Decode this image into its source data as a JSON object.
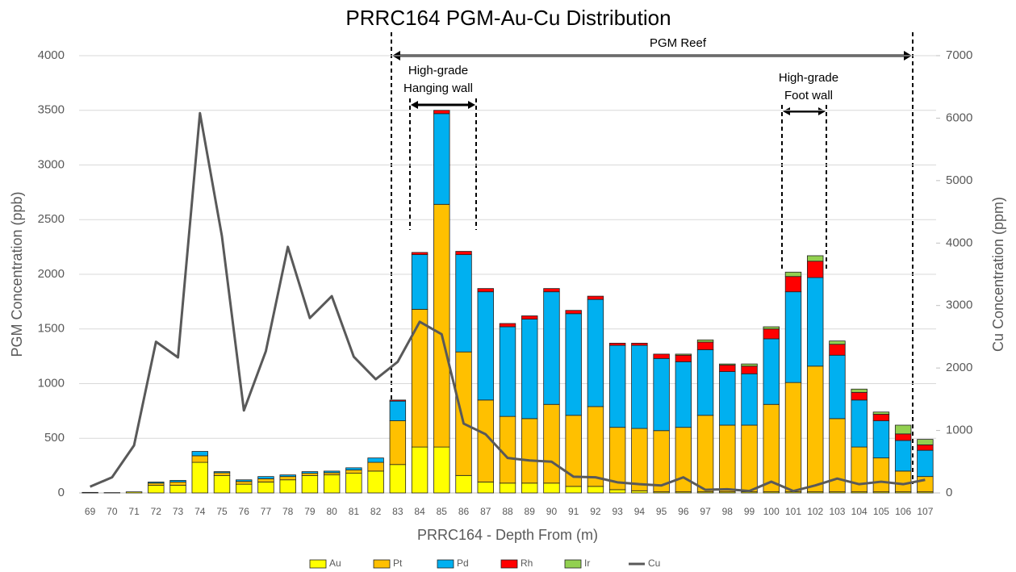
{
  "chart_data": {
    "type": "bar",
    "stacked": true,
    "title": "PRRC164 PGM-Au-Cu Distribution",
    "x_label": "PRRC164 - Depth From (m)",
    "y_label": "PGM Concentration (ppb)",
    "y2_label": "Cu Concentration (ppm)",
    "annotations": [
      "PGM Reef",
      "High-grade",
      "Hanging wall",
      "High-grade",
      "Foot wall"
    ],
    "categories": [
      "69",
      "70",
      "71",
      "72",
      "73",
      "74",
      "75",
      "76",
      "77",
      "78",
      "79",
      "80",
      "81",
      "82",
      "83",
      "84",
      "85",
      "86",
      "87",
      "88",
      "89",
      "90",
      "91",
      "92",
      "93",
      "94",
      "95",
      "96",
      "97",
      "98",
      "99",
      "100",
      "101",
      "102",
      "103",
      "104",
      "105",
      "106",
      "107"
    ],
    "series": [
      {
        "name": "Au",
        "color": "#ffff00",
        "values": [
          5,
          3,
          10,
          70,
          70,
          280,
          160,
          80,
          100,
          120,
          160,
          165,
          180,
          200,
          260,
          420,
          420,
          160,
          100,
          90,
          90,
          90,
          60,
          60,
          30,
          20,
          10,
          10,
          10,
          10,
          10,
          10,
          10,
          10,
          10,
          10,
          10,
          10,
          10
        ]
      },
      {
        "name": "Pt",
        "color": "#ffc000",
        "values": [
          0,
          0,
          0,
          20,
          30,
          60,
          25,
          25,
          30,
          30,
          20,
          20,
          30,
          80,
          400,
          1260,
          2220,
          1130,
          750,
          610,
          590,
          720,
          650,
          730,
          570,
          570,
          560,
          590,
          700,
          610,
          610,
          800,
          1000,
          1150,
          670,
          410,
          310,
          190,
          140
        ]
      },
      {
        "name": "Pd",
        "color": "#00b0f0",
        "values": [
          0,
          0,
          0,
          10,
          15,
          40,
          10,
          15,
          20,
          15,
          15,
          15,
          20,
          40,
          180,
          500,
          830,
          890,
          990,
          820,
          910,
          1030,
          930,
          980,
          750,
          760,
          660,
          600,
          600,
          490,
          470,
          600,
          830,
          810,
          580,
          430,
          340,
          280,
          240
        ]
      },
      {
        "name": "Rh",
        "color": "#ff0000",
        "values": [
          0,
          0,
          0,
          0,
          0,
          0,
          0,
          0,
          0,
          0,
          0,
          0,
          0,
          0,
          10,
          20,
          30,
          30,
          30,
          30,
          30,
          30,
          30,
          30,
          20,
          20,
          40,
          60,
          70,
          60,
          70,
          90,
          140,
          150,
          100,
          70,
          60,
          60,
          50
        ]
      },
      {
        "name": "Ir",
        "color": "#92d050",
        "values": [
          0,
          0,
          0,
          0,
          0,
          0,
          0,
          0,
          0,
          0,
          0,
          0,
          0,
          0,
          0,
          0,
          0,
          0,
          0,
          0,
          0,
          0,
          0,
          0,
          0,
          0,
          0,
          10,
          20,
          10,
          20,
          20,
          40,
          50,
          30,
          30,
          20,
          80,
          50
        ]
      },
      {
        "name": "Cu",
        "color": "#595959",
        "type": "line",
        "axis": "y2",
        "values": [
          100,
          250,
          760,
          2420,
          2170,
          6080,
          4110,
          1320,
          2270,
          3940,
          2800,
          3150,
          2180,
          1820,
          2100,
          2740,
          2540,
          1110,
          940,
          560,
          520,
          500,
          260,
          250,
          170,
          140,
          120,
          250,
          50,
          60,
          30,
          180,
          30,
          120,
          230,
          140,
          180,
          140,
          210
        ]
      }
    ],
    "ylim": [
      0,
      4000
    ],
    "yticks": [
      0,
      500,
      1000,
      1500,
      2000,
      2500,
      3000,
      3500,
      4000
    ],
    "y2lim": [
      0,
      7000
    ],
    "y2ticks": [
      0,
      1000,
      2000,
      3000,
      4000,
      5000,
      6000,
      7000
    ],
    "grid": true,
    "legend": "bottom"
  }
}
